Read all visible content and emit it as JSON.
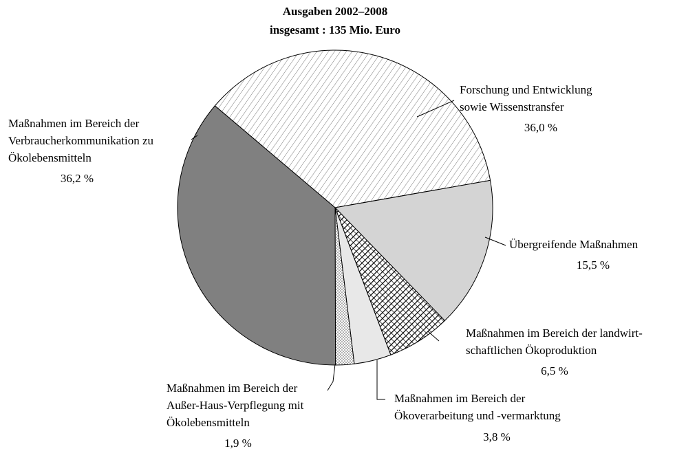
{
  "chart_data": {
    "type": "pie",
    "title": [
      "Ausgaben 2002–2008",
      "insgesamt : 135 Mio. Euro"
    ],
    "categories": [
      [
        "Forschung und Entwicklung",
        "sowie Wissenstransfer"
      ],
      [
        "Übergreifende Maßnahmen"
      ],
      [
        "Maßnahmen im Bereich der landwirt-",
        "schaftlichen Ökoproduktion"
      ],
      [
        "Maßnahmen im Bereich der",
        "Ökoverarbeitung und -vermarktung"
      ],
      [
        "Maßnahmen im Bereich der",
        "Außer-Haus-Verpflegung mit",
        "Ökolebensmitteln"
      ],
      [
        "Maßnahmen im Bereich der",
        "Verbraucherkommunikation zu",
        "Ökolebensmitteln"
      ]
    ],
    "values": [
      36.0,
      15.5,
      6.5,
      3.8,
      1.9,
      36.2
    ],
    "value_labels": [
      "36,0 %",
      "15,5 %",
      "6,5 %",
      "3,8 %",
      "1,9 %",
      "36,2 %"
    ],
    "colors": [
      "hatch",
      "#d4d4d4",
      "crosshatch",
      "#e8e8e8",
      "dots",
      "#808080"
    ]
  }
}
